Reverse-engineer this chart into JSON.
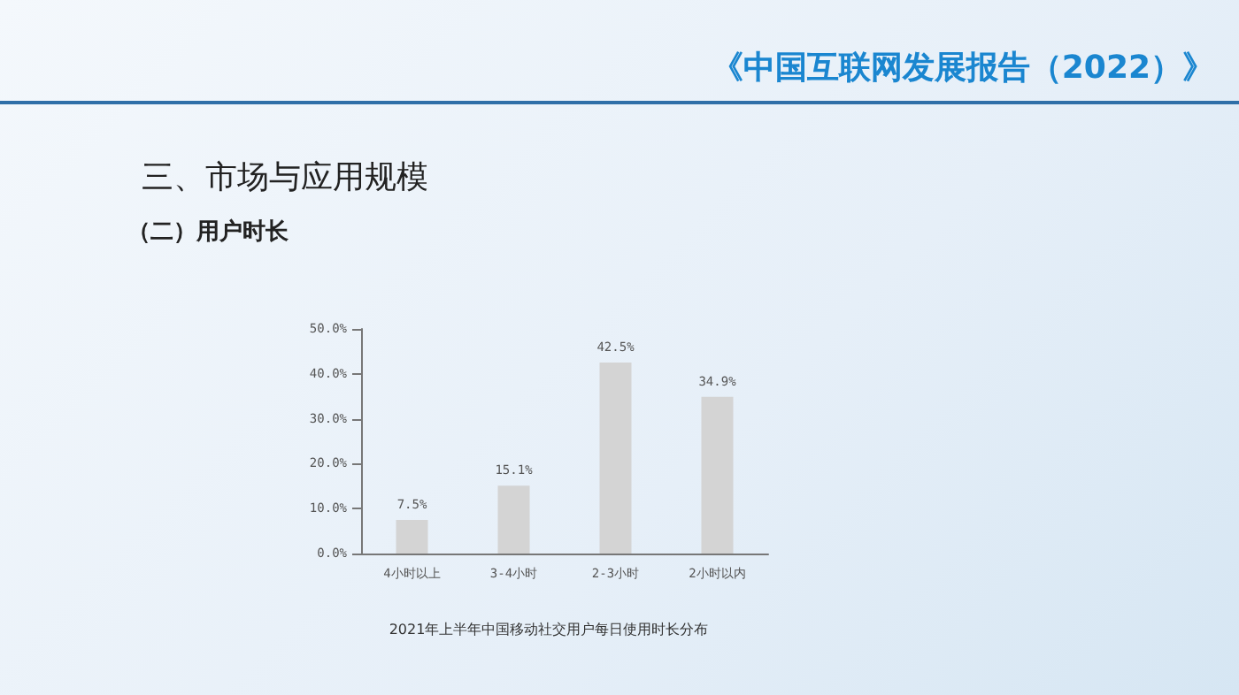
{
  "chart_data": {
    "type": "bar",
    "title": "2021年上半年中国移动社交用户每日使用时长分布",
    "annotations": [
      "《中国互联网发展报告（2022）》",
      "三、市场与应用规模",
      "（二）用户时长"
    ],
    "categories": [
      "4小时以上",
      "3-4小时",
      "2-3小时",
      "2小时以内"
    ],
    "values": [
      7.5,
      15.1,
      42.5,
      34.9
    ],
    "value_labels": [
      "7.5%",
      "15.1%",
      "42.5%",
      "34.9%"
    ],
    "color": "#d4d4d4",
    "ylim": [
      0,
      50
    ],
    "yticks": [
      {
        "value": 0,
        "label": "0.0%"
      },
      {
        "value": 10,
        "label": "10.0%"
      },
      {
        "value": 20,
        "label": "20.0%"
      },
      {
        "value": 30,
        "label": "30.0%"
      },
      {
        "value": 40,
        "label": "40.0%"
      },
      {
        "value": 50,
        "label": "50.0%"
      }
    ],
    "grid": false
  }
}
